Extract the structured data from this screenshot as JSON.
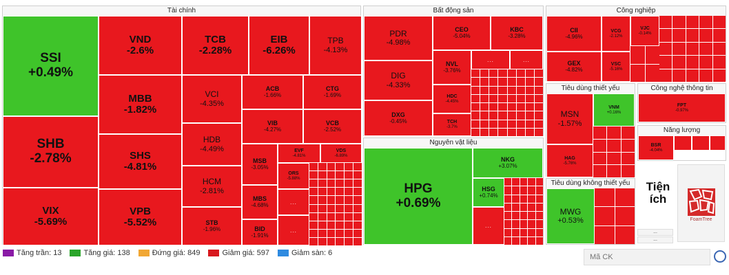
{
  "sections": {
    "financial": "Tài chính",
    "real_estate": "Bất động sản",
    "industrial": "Công nghiệp",
    "materials": "Nguyên vật liệu",
    "staples": "Tiêu dùng thiết yếu",
    "it": "Công nghệ thông tin",
    "discretionary": "Tiêu dùng không thiết yếu",
    "energy": "Năng lượng",
    "utilities": "Tiện ích"
  },
  "tiles": {
    "SSI": {
      "s": "SSI",
      "p": "+0.49%"
    },
    "SHB": {
      "s": "SHB",
      "p": "-2.78%"
    },
    "VIX": {
      "s": "VIX",
      "p": "-5.69%"
    },
    "VND": {
      "s": "VND",
      "p": "-2.6%"
    },
    "MBB": {
      "s": "MBB",
      "p": "-1.82%"
    },
    "SHS": {
      "s": "SHS",
      "p": "-4.81%"
    },
    "VPB": {
      "s": "VPB",
      "p": "-5.52%"
    },
    "TCB": {
      "s": "TCB",
      "p": "-2.28%"
    },
    "VCI": {
      "s": "VCI",
      "p": "-4.35%"
    },
    "HDB": {
      "s": "HDB",
      "p": "-4.49%"
    },
    "HCM": {
      "s": "HCM",
      "p": "-2.81%"
    },
    "STB": {
      "s": "STB",
      "p": "-1.96%"
    },
    "EIB": {
      "s": "EIB",
      "p": "-6.26%"
    },
    "TPB": {
      "s": "TPB",
      "p": "-4.13%"
    },
    "ACB": {
      "s": "ACB",
      "p": "-1.66%"
    },
    "CTG": {
      "s": "CTG",
      "p": "-1.69%"
    },
    "VIB": {
      "s": "VIB",
      "p": "-4.27%"
    },
    "VCB": {
      "s": "VCB",
      "p": "-2.52%"
    },
    "MSB": {
      "s": "MSB",
      "p": "-3.05%"
    },
    "MBS": {
      "s": "MBS",
      "p": "-4.68%"
    },
    "BID": {
      "s": "BID",
      "p": "-1.91%"
    },
    "EVF": {
      "s": "EVF",
      "p": "-4.81%"
    },
    "VDS": {
      "s": "VDS",
      "p": "-6.89%"
    },
    "ORS": {
      "s": "ORS",
      "p": "-5.88%"
    },
    "PDR": {
      "s": "PDR",
      "p": "-4.98%"
    },
    "DIG": {
      "s": "DIG",
      "p": "-4.33%"
    },
    "DXG": {
      "s": "DXG",
      "p": "-0.45%"
    },
    "CEO": {
      "s": "CEO",
      "p": "-5.04%"
    },
    "KBC": {
      "s": "KBC",
      "p": "-3.28%"
    },
    "NVL": {
      "s": "NVL",
      "p": "-3.76%"
    },
    "HDC": {
      "s": "HDC",
      "p": "-4.45%"
    },
    "TCH": {
      "s": "TCH",
      "p": "-3.7%"
    },
    "CII": {
      "s": "CII",
      "p": "-4.96%"
    },
    "VCG": {
      "s": "VCG",
      "p": "-2.12%"
    },
    "VJC": {
      "s": "VJC",
      "p": "-0.14%"
    },
    "GEX": {
      "s": "GEX",
      "p": "-4.82%"
    },
    "VSC": {
      "s": "VSC",
      "p": "-5.16%"
    },
    "HPG": {
      "s": "HPG",
      "p": "+0.69%"
    },
    "NKG": {
      "s": "NKG",
      "p": "+3.07%"
    },
    "HSG": {
      "s": "HSG",
      "p": "+0.74%"
    },
    "MSN": {
      "s": "MSN",
      "p": "-1.57%"
    },
    "VNM": {
      "s": "VNM",
      "p": "+0.16%"
    },
    "HAG": {
      "s": "HAG",
      "p": "-5.76%"
    },
    "FPT": {
      "s": "FPT",
      "p": "-0.97%"
    },
    "BSR": {
      "s": "BSR",
      "p": "-4.04%"
    },
    "MWG": {
      "s": "MWG",
      "p": "+0.53%"
    }
  },
  "dots": "...",
  "utilities_logo_text": "FoamTree",
  "legend": [
    {
      "label": "Tăng trần: 13",
      "color": "#8a1aa6"
    },
    {
      "label": "Tăng giá: 138",
      "color": "#2aa52a"
    },
    {
      "label": "Đứng giá: 849",
      "color": "#f1a734"
    },
    {
      "label": "Giảm giá: 597",
      "color": "#d8181e"
    },
    {
      "label": "Giảm sàn: 6",
      "color": "#2f8be0"
    }
  ],
  "search": {
    "placeholder": "Mã CK"
  }
}
